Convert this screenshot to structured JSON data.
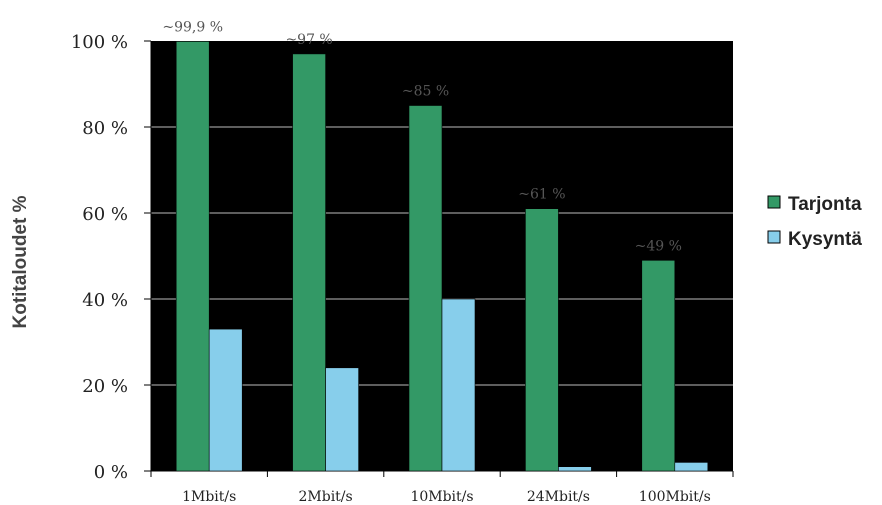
{
  "chart_data": {
    "type": "bar",
    "categories": [
      "1Mbit/s",
      "2Mbit/s",
      "10Mbit/s",
      "24Mbit/s",
      "100Mbit/s"
    ],
    "series": [
      {
        "name": "Tarjonta",
        "values": [
          99.9,
          97,
          85,
          61,
          49
        ],
        "color": "#339966"
      },
      {
        "name": "Kysyntä",
        "values": [
          33,
          24,
          40,
          1,
          2
        ],
        "color": "#87CEEB"
      }
    ],
    "data_labels": [
      "~99,9 %",
      "~97 %",
      "~85 %",
      "~61 %",
      "~49 %"
    ],
    "ylabel": "Kotitaloudet %",
    "yticks": [
      "0 %",
      "20 %",
      "40 %",
      "60 %",
      "80 %",
      "100 %"
    ],
    "ylim": [
      0,
      100
    ],
    "grid": true,
    "plot_background": "#000000",
    "gridline_color": "#bbbbbb",
    "legend_position": "right"
  }
}
